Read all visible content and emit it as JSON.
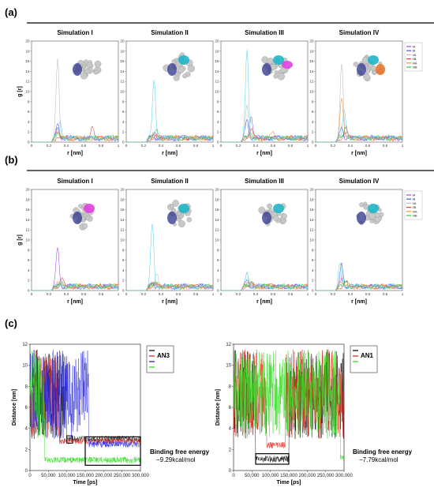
{
  "panels": {
    "a": "(a)",
    "b": "(b)",
    "c": "(c)"
  },
  "notes": [
    {
      "label": "Binding free energy",
      "value": "−9.29kcal/mol"
    },
    {
      "label": "Binding free energy",
      "value": "−7.79kcal/mol"
    }
  ],
  "chart_data": [
    {
      "type": "line",
      "row": "a",
      "titles": [
        "Simulation I",
        "Simulation II",
        "Simulation III",
        "Simulation IV"
      ],
      "xlabel": "r [nm]",
      "ylabel": "g [r]",
      "xlim": [
        0,
        1
      ],
      "ylim": [
        0,
        20
      ],
      "xticks": [
        "0",
        "0.2",
        "0.4",
        "0.6",
        "0.8",
        "1"
      ],
      "yticks": [
        "0",
        "2",
        "4",
        "6",
        "8",
        "10",
        "12",
        "14",
        "16",
        "18",
        "20"
      ],
      "legend": [
        "IA",
        "IB",
        "IIA",
        "IIB",
        "IIIA",
        "IIIB"
      ],
      "legend_colors": [
        "#a24bd6",
        "#3b5bd9",
        "#bdbdbd",
        "#e6402f",
        "#f0923c",
        "#33cc33"
      ],
      "series_colors": [
        "#a24bd6",
        "#3b5bd9",
        "#bdbdbd",
        "#e6402f",
        "#f0923c",
        "#33cc33",
        "#5ad6f0"
      ],
      "panels": [
        [
          [
            0.3,
            2.8
          ],
          [
            0.3,
            2
          ],
          [
            0.3,
            15.8
          ],
          [
            0.7,
            2.6
          ],
          [
            0.3,
            1
          ],
          [
            0.3,
            0.7
          ],
          [
            0.33,
            3.2
          ]
        ],
        [
          [
            0.33,
            1.4
          ],
          [
            0.3,
            0.8
          ],
          [
            0.32,
            1.5
          ],
          [
            0.35,
            0.4
          ],
          [
            0.3,
            0.5
          ],
          [
            0.35,
            1.6
          ],
          [
            0.32,
            11.5
          ]
        ],
        [
          [
            0.35,
            4.4
          ],
          [
            0.3,
            3.8
          ],
          [
            0.3,
            6.8
          ],
          [
            0.35,
            1.5
          ],
          [
            0.6,
            1.3
          ],
          [
            0.35,
            0.9
          ],
          [
            0.3,
            17
          ]
        ],
        [
          [
            0.35,
            2.6
          ],
          [
            0.3,
            2.2
          ],
          [
            0.3,
            15.2
          ],
          [
            0.35,
            1
          ],
          [
            0.3,
            7.8
          ],
          [
            0.35,
            2
          ],
          [
            0.33,
            5.5
          ]
        ]
      ]
    },
    {
      "type": "line",
      "row": "b",
      "titles": [
        "Simulation I",
        "Simulation II",
        "Simulation III",
        "Simulation IV"
      ],
      "xlabel": "r [nm]",
      "ylabel": "g [r]",
      "xlim": [
        0,
        1
      ],
      "ylim": [
        0,
        20
      ],
      "xticks": [
        "0",
        "0.2",
        "0.4",
        "0.6",
        "0.8",
        "1"
      ],
      "yticks": [
        "0",
        "2",
        "4",
        "6",
        "8",
        "10",
        "12",
        "14",
        "16",
        "18",
        "20"
      ],
      "legend": [
        "IA",
        "IB",
        "IIA",
        "IIB",
        "IIIA",
        "IIIB"
      ],
      "legend_colors": [
        "#a24bd6",
        "#3b5bd9",
        "#bdbdbd",
        "#e6402f",
        "#f0923c",
        "#33cc33"
      ],
      "series_colors": [
        "#a24bd6",
        "#3b5bd9",
        "#bdbdbd",
        "#e6402f",
        "#f0923c",
        "#33cc33",
        "#5ad6f0"
      ],
      "panels": [
        [
          [
            0.3,
            7.8
          ],
          [
            0.32,
            0.9
          ],
          [
            0.35,
            1.1
          ],
          [
            0.35,
            1.6
          ],
          [
            0.3,
            0.6
          ],
          [
            0.35,
            0.5
          ],
          [
            0.35,
            0.6
          ]
        ],
        [
          [
            0.33,
            0.9
          ],
          [
            0.3,
            0.8
          ],
          [
            0.35,
            2.6
          ],
          [
            0.35,
            0.4
          ],
          [
            0.3,
            0.6
          ],
          [
            0.35,
            1
          ],
          [
            0.3,
            12.3
          ]
        ],
        [
          [
            0.35,
            0.6
          ],
          [
            0.3,
            1.4
          ],
          [
            0.3,
            3.2
          ],
          [
            0.35,
            0.6
          ],
          [
            0.3,
            0.5
          ],
          [
            0.35,
            0.9
          ],
          [
            0.3,
            2.4
          ]
        ],
        [
          [
            0.3,
            1.3
          ],
          [
            0.3,
            4.6
          ],
          [
            0.3,
            2.6
          ],
          [
            0.35,
            0.9
          ],
          [
            0.3,
            0.8
          ],
          [
            0.35,
            1
          ],
          [
            0.28,
            4.2
          ]
        ]
      ]
    },
    {
      "type": "line",
      "row": "c",
      "xlabel": "Time [ps]",
      "ylabel": "Distance [nm]",
      "xlim": [
        0,
        300000
      ],
      "ylim": [
        0,
        12
      ],
      "xticks": [
        "0",
        "50,000",
        "100,000",
        "150,000",
        "200,000",
        "250,000",
        "300,000"
      ],
      "yticks": [
        "0",
        "2",
        "4",
        "6",
        "8",
        "10",
        "12"
      ],
      "panels": [
        {
          "legend_title": "AN3",
          "series": [
            {
              "color": "#111111",
              "plateau": {
                "start": 100000,
                "end": 300000,
                "level": 3.0
              }
            },
            {
              "color": "#e02a1f",
              "plateau": {
                "start": 80000,
                "end": 300000,
                "level": 2.8
              }
            },
            {
              "color": "#2424e0",
              "plateau": {
                "start": 160000,
                "end": 300000,
                "level": 2.5
              }
            },
            {
              "color": "#33dd22",
              "plateau": {
                "start": 40000,
                "end": 300000,
                "level": 1.0
              }
            }
          ]
        },
        {
          "legend_title": "AN1",
          "series": [
            {
              "color": "#111111",
              "plateau": {
                "start": 60000,
                "end": 150000,
                "level": 1.1
              }
            },
            {
              "color": "#e02a1f",
              "plateau": {
                "start": 90000,
                "end": 140000,
                "level": 2.4
              }
            },
            {
              "color": "#33dd22",
              "plateau": {
                "start": 290000,
                "end": 300000,
                "level": 1.2
              }
            }
          ]
        }
      ]
    }
  ]
}
